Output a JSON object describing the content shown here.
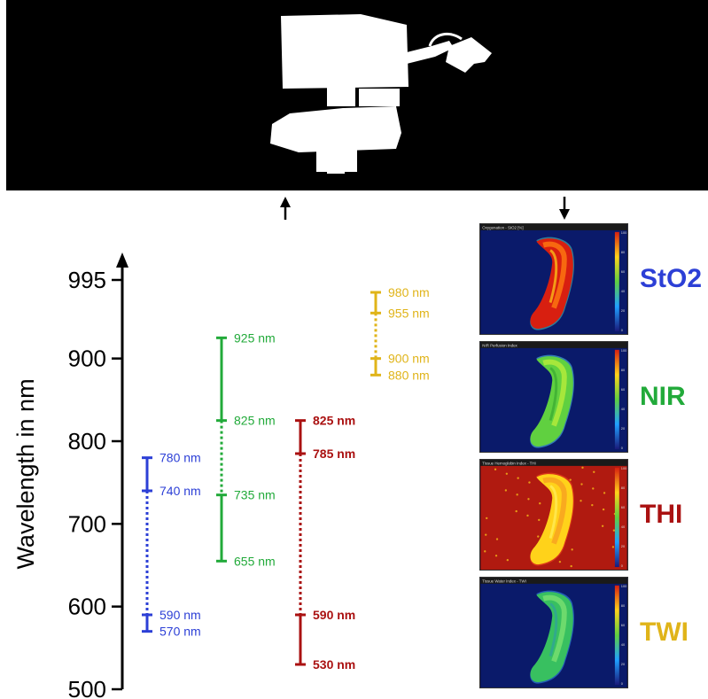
{
  "axis": {
    "label": "Wavelength in nm",
    "ticks": [
      500,
      600,
      700,
      800,
      900,
      995
    ],
    "range": [
      500,
      995
    ]
  },
  "groups": [
    {
      "name": "StO2",
      "color": "#2c3fd6",
      "segments": [
        {
          "low": 740,
          "high": 780,
          "style": "solid"
        },
        {
          "low": 590,
          "high": 740,
          "style": "dotted"
        },
        {
          "low": 570,
          "high": 590,
          "style": "solid"
        }
      ],
      "labels": [
        {
          "value": 780,
          "text": "780 nm"
        },
        {
          "value": 740,
          "text": "740 nm"
        },
        {
          "value": 590,
          "text": "590 nm"
        },
        {
          "value": 570,
          "text": "570 nm"
        }
      ]
    },
    {
      "name": "NIR",
      "color": "#22aa3a",
      "segments": [
        {
          "low": 825,
          "high": 925,
          "style": "solid"
        },
        {
          "low": 735,
          "high": 825,
          "style": "dotted"
        },
        {
          "low": 655,
          "high": 735,
          "style": "solid"
        }
      ],
      "labels": [
        {
          "value": 925,
          "text": "925 nm"
        },
        {
          "value": 825,
          "text": "825 nm"
        },
        {
          "value": 735,
          "text": "735 nm"
        },
        {
          "value": 655,
          "text": "655 nm"
        }
      ]
    },
    {
      "name": "THI",
      "color": "#aa1111",
      "segments": [
        {
          "low": 785,
          "high": 825,
          "style": "solid"
        },
        {
          "low": 590,
          "high": 785,
          "style": "dotted"
        },
        {
          "low": 530,
          "high": 590,
          "style": "solid"
        }
      ],
      "labels": [
        {
          "value": 825,
          "text": "825 nm"
        },
        {
          "value": 785,
          "text": "785 nm"
        },
        {
          "value": 590,
          "text": "590 nm"
        },
        {
          "value": 530,
          "text": "530 nm"
        }
      ]
    },
    {
      "name": "TWI",
      "color": "#e0b419",
      "segments": [
        {
          "low": 955,
          "high": 980,
          "style": "solid"
        },
        {
          "low": 900,
          "high": 955,
          "style": "dotted"
        },
        {
          "low": 880,
          "high": 900,
          "style": "solid"
        }
      ],
      "labels": [
        {
          "value": 980,
          "text": "980 nm"
        },
        {
          "value": 955,
          "text": "955 nm"
        },
        {
          "value": 900,
          "text": "900 nm"
        },
        {
          "value": 880,
          "text": "880 nm"
        }
      ]
    }
  ],
  "maps": [
    {
      "label": "StO2",
      "color": "#2c3fd6",
      "title": "Oxygenation - StO2 [%]",
      "scheme": "sto2"
    },
    {
      "label": "NIR",
      "color": "#22aa3a",
      "title": "NIR Perfusion Index",
      "scheme": "nir"
    },
    {
      "label": "THI",
      "color": "#aa1111",
      "title": "Tissue Hemoglobin Index - THI",
      "scheme": "thi"
    },
    {
      "label": "TWI",
      "color": "#e0b419",
      "title": "Tissue Water Index - TWI",
      "scheme": "twi"
    }
  ],
  "colorbar_ticks": [
    "100",
    "80",
    "60",
    "40",
    "20",
    "0"
  ]
}
